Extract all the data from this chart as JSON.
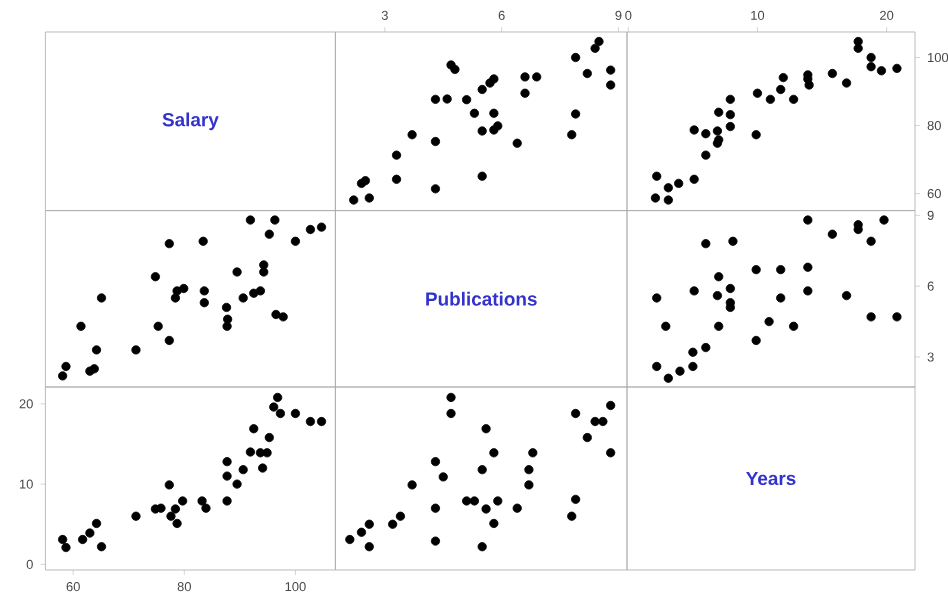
{
  "chart_data": [
    {
      "type": "other",
      "title": "Salary"
    },
    {
      "type": "scatter",
      "color": "#000000",
      "marker": "circle",
      "xlim": [
        1.73,
        9.22
      ],
      "ylim": [
        55,
        107.5
      ],
      "xticks": [
        3,
        6,
        9
      ],
      "tick_labels": "x",
      "x": [
        2.2,
        2.6,
        4.3,
        2.4,
        2.5,
        3.3,
        5.5,
        3.3,
        6.4,
        4.3,
        7.8,
        3.7,
        5.5,
        5.8,
        5.9,
        7.9,
        5.8,
        5.3,
        5.1,
        4.6,
        4.3,
        6.6,
        5.5,
        8.8,
        5.7,
        5.8,
        6.6,
        6.9,
        8.2,
        8.8,
        4.8,
        4.7,
        7.9,
        8.4,
        8.5
      ],
      "values": [
        58.1,
        58.7,
        61.4,
        63.0,
        63.8,
        64.2,
        65.1,
        71.3,
        74.8,
        75.3,
        77.3,
        77.3,
        78.4,
        78.7,
        79.9,
        83.4,
        83.6,
        83.6,
        87.6,
        87.8,
        87.7,
        89.5,
        90.6,
        91.9,
        92.5,
        93.7,
        94.3,
        94.3,
        95.3,
        96.3,
        96.5,
        97.8,
        100.0,
        102.7,
        104.7
      ]
    },
    {
      "type": "scatter",
      "color": "#000000",
      "marker": "circle",
      "xlim": [
        -0.1,
        22.2
      ],
      "ylim": [
        55,
        107.5
      ],
      "xticks": [
        0,
        10,
        20
      ],
      "yticks": [
        60,
        80,
        100
      ],
      "x": [
        3.1,
        2.1,
        3.1,
        3.9,
        5.1,
        2.2,
        6.0,
        6.9,
        7.0,
        9.9,
        6.0,
        6.9,
        5.1,
        7.9,
        7.9,
        7.0,
        12.8,
        11.0,
        7.9,
        10.0,
        11.8,
        14.0,
        16.9,
        13.9,
        12.0,
        13.9,
        15.8,
        19.6,
        20.8,
        18.8,
        18.8,
        17.8,
        17.8
      ],
      "values": [
        58.1,
        58.7,
        61.7,
        63.0,
        64.2,
        65.1,
        71.3,
        74.8,
        75.8,
        77.3,
        77.6,
        78.4,
        78.7,
        79.7,
        83.2,
        83.9,
        87.7,
        87.7,
        87.7,
        89.5,
        90.6,
        91.9,
        92.5,
        93.7,
        94.1,
        94.9,
        95.3,
        96.1,
        96.8,
        97.3,
        100.0,
        102.7,
        104.7
      ]
    },
    {
      "type": "scatter",
      "color": "#000000",
      "marker": "circle",
      "xlim": [
        55,
        107.2
      ],
      "ylim": [
        1.73,
        9.2
      ],
      "x": [
        58.1,
        58.7,
        61.4,
        63.0,
        63.8,
        64.2,
        65.1,
        71.3,
        74.8,
        75.3,
        77.3,
        77.3,
        78.4,
        78.7,
        79.9,
        83.4,
        83.6,
        83.6,
        87.6,
        87.8,
        87.7,
        89.5,
        90.6,
        91.9,
        92.5,
        93.7,
        94.3,
        94.3,
        95.3,
        96.3,
        96.5,
        97.8,
        100.0,
        102.7,
        104.7
      ],
      "values": [
        2.2,
        2.6,
        4.3,
        2.4,
        2.5,
        3.3,
        5.5,
        3.3,
        6.4,
        4.3,
        7.8,
        3.7,
        5.5,
        5.8,
        5.9,
        7.9,
        5.8,
        5.3,
        5.1,
        4.6,
        4.3,
        6.6,
        5.5,
        8.8,
        5.7,
        5.8,
        6.6,
        6.9,
        8.2,
        8.8,
        4.8,
        4.7,
        7.9,
        8.4,
        8.5
      ]
    },
    {
      "type": "other",
      "title": "Publications"
    },
    {
      "type": "scatter",
      "color": "#000000",
      "marker": "circle",
      "xlim": [
        -0.1,
        22.2
      ],
      "ylim": [
        1.73,
        9.2
      ],
      "yticks": [
        3,
        6,
        9
      ],
      "tick_labels": "y",
      "x": [
        3.1,
        4.0,
        5.0,
        2.2,
        5.0,
        6.0,
        9.9,
        12.8,
        7.0,
        2.9,
        10.9,
        20.8,
        18.8,
        7.9,
        7.9,
        11.8,
        2.2,
        16.9,
        6.9,
        13.9,
        5.1,
        7.9,
        7.0,
        9.9,
        11.8,
        13.9,
        6.0,
        8.1,
        18.8,
        15.8,
        17.8,
        17.8,
        19.8,
        13.9
      ],
      "values": [
        2.1,
        2.4,
        2.6,
        2.6,
        3.2,
        3.4,
        3.7,
        4.3,
        4.3,
        4.3,
        4.5,
        4.7,
        4.7,
        5.1,
        5.3,
        5.5,
        5.5,
        5.6,
        5.6,
        5.8,
        5.8,
        5.9,
        6.4,
        6.7,
        6.7,
        6.8,
        7.8,
        7.9,
        7.9,
        8.2,
        8.4,
        8.6,
        8.8,
        8.8
      ]
    },
    {
      "type": "scatter",
      "color": "#000000",
      "marker": "circle",
      "xlim": [
        55,
        107.2
      ],
      "ylim": [
        -0.7,
        22.1
      ],
      "xticks": [
        60,
        80,
        100
      ],
      "yticks": [
        0,
        10,
        20
      ],
      "x": [
        58.1,
        58.7,
        61.7,
        63.0,
        64.2,
        65.1,
        71.3,
        74.8,
        75.8,
        77.3,
        77.6,
        78.4,
        78.7,
        79.7,
        83.2,
        83.9,
        87.7,
        87.7,
        87.7,
        89.5,
        90.6,
        91.9,
        92.5,
        93.7,
        94.1,
        94.9,
        95.3,
        96.1,
        96.8,
        97.3,
        100.0,
        102.7,
        104.7
      ],
      "values": [
        3.1,
        2.1,
        3.1,
        3.9,
        5.1,
        2.2,
        6.0,
        6.9,
        7.0,
        9.9,
        6.0,
        6.9,
        5.1,
        7.9,
        7.9,
        7.0,
        12.8,
        11.0,
        7.9,
        10.0,
        11.8,
        14.0,
        16.9,
        13.9,
        12.0,
        13.9,
        15.8,
        19.6,
        20.8,
        18.8,
        18.8,
        17.8,
        17.8
      ]
    },
    {
      "type": "scatter",
      "color": "#000000",
      "marker": "circle",
      "xlim": [
        1.73,
        9.22
      ],
      "ylim": [
        -0.7,
        22.1
      ],
      "x": [
        2.1,
        2.4,
        2.6,
        2.6,
        3.2,
        3.4,
        3.7,
        4.3,
        4.3,
        4.3,
        4.5,
        4.7,
        4.7,
        5.1,
        5.3,
        5.5,
        5.5,
        5.6,
        5.6,
        5.8,
        5.8,
        5.9,
        6.4,
        6.7,
        6.7,
        6.8,
        7.8,
        7.9,
        7.9,
        8.2,
        8.4,
        8.6,
        8.8,
        8.8
      ],
      "values": [
        3.1,
        4.0,
        5.0,
        2.2,
        5.0,
        6.0,
        9.9,
        12.8,
        7.0,
        2.9,
        10.9,
        20.8,
        18.8,
        7.9,
        7.9,
        11.8,
        2.2,
        16.9,
        6.9,
        13.9,
        5.1,
        7.9,
        7.0,
        9.9,
        11.8,
        13.9,
        6.0,
        8.1,
        18.8,
        15.8,
        17.8,
        17.8,
        19.8,
        13.9
      ]
    },
    {
      "type": "other",
      "title": "Years"
    }
  ]
}
